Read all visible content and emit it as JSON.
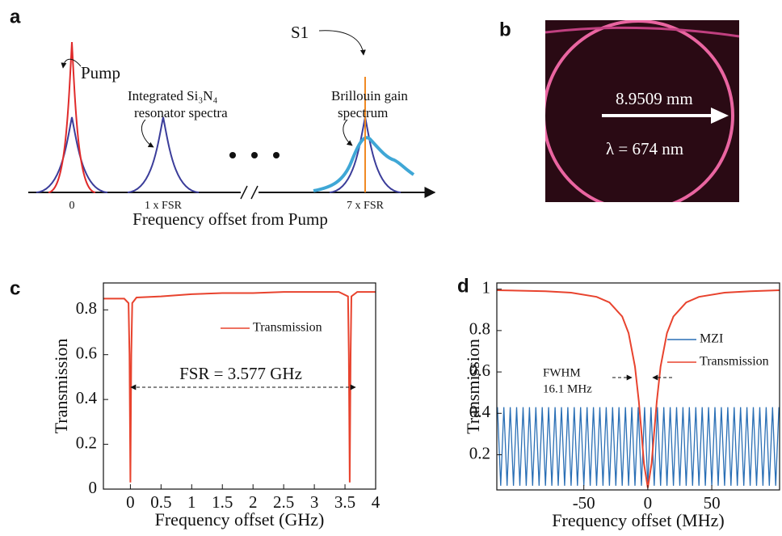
{
  "panel_a": {
    "label": "a",
    "pump": "Pump",
    "resonator": [
      "Integrated Si₃N₄",
      "resonator spectra"
    ],
    "brillouin": [
      "Brillouin gain",
      "spectrum"
    ],
    "s1": "S1",
    "ticks": [
      "0",
      "1 x FSR",
      "7 x FSR"
    ],
    "xlabel": "Frequency offset from Pump"
  },
  "panel_b": {
    "label": "b",
    "diameter": "8.9509 mm",
    "wavelength": "λ = 674 nm"
  },
  "chart_data": [
    {
      "type": "line",
      "panel": "c",
      "xlabel": "Frequency offset (GHz)",
      "ylabel": "Transmission",
      "annotations": [
        "FSR = 3.577 GHz"
      ],
      "xlim": [
        -0.44,
        4
      ],
      "ylim": [
        0,
        0.92
      ],
      "xticks": [
        0,
        0.5,
        1,
        1.5,
        2,
        2.5,
        3,
        3.5,
        4
      ],
      "yticks": [
        0,
        0.2,
        0.4,
        0.6,
        0.8
      ],
      "series": [
        {
          "name": "Transmission",
          "color": "#e8432e",
          "x": [
            -0.44,
            -0.3,
            -0.1,
            -0.03,
            -0.015,
            0,
            0.015,
            0.03,
            0.1,
            0.5,
            1,
            1.5,
            2,
            2.5,
            3,
            3.4,
            3.55,
            3.562,
            3.577,
            3.592,
            3.605,
            3.7,
            4
          ],
          "values": [
            0.85,
            0.85,
            0.85,
            0.83,
            0.6,
            0.03,
            0.6,
            0.83,
            0.855,
            0.86,
            0.87,
            0.875,
            0.875,
            0.88,
            0.88,
            0.88,
            0.86,
            0.6,
            0.03,
            0.6,
            0.86,
            0.88,
            0.88
          ]
        }
      ]
    },
    {
      "type": "line",
      "panel": "d",
      "xlabel": "Frequency offset (MHz)",
      "ylabel": "Transmission",
      "annotations": [
        "FWHM",
        "16.1 MHz"
      ],
      "xlim": [
        -118,
        103
      ],
      "ylim": [
        0.03,
        1.03
      ],
      "xticks": [
        -50,
        0,
        50
      ],
      "yticks": [
        0.2,
        0.4,
        0.6,
        0.8,
        1
      ],
      "series": [
        {
          "name": "MZI",
          "color": "#2a6fb5",
          "x": [
            -117.5,
            -115,
            -112.5,
            -110,
            -107.5,
            -105,
            -102.5,
            -100,
            -97.5,
            -95,
            -92.5,
            -90,
            -87.5,
            -85,
            -82.5,
            -80,
            -77.5,
            -75,
            -72.5,
            -70,
            -67.5,
            -65,
            -62.5,
            -60,
            -57.5,
            -55,
            -52.5,
            -50,
            -47.5,
            -45,
            -42.5,
            -40,
            -37.5,
            -35,
            -32.5,
            -30,
            -27.5,
            -25,
            -22.5,
            -20,
            -17.5,
            -15,
            -12.5,
            -10,
            -7.5,
            -5,
            -2.5,
            0,
            2.5,
            5,
            7.5,
            10,
            12.5,
            15,
            17.5,
            20,
            22.5,
            25,
            27.5,
            30,
            32.5,
            35,
            37.5,
            40,
            42.5,
            45,
            47.5,
            50,
            52.5,
            55,
            57.5,
            60,
            62.5,
            65,
            67.5,
            70,
            72.5,
            75,
            77.5,
            80,
            82.5,
            85,
            87.5,
            90,
            92.5,
            95,
            97.5,
            100,
            102.5
          ],
          "values": [
            0.43,
            0.05,
            0.43,
            0.05,
            0.43,
            0.05,
            0.43,
            0.05,
            0.43,
            0.05,
            0.43,
            0.05,
            0.43,
            0.05,
            0.43,
            0.05,
            0.43,
            0.05,
            0.43,
            0.05,
            0.43,
            0.05,
            0.43,
            0.05,
            0.43,
            0.05,
            0.43,
            0.05,
            0.43,
            0.05,
            0.43,
            0.05,
            0.43,
            0.05,
            0.43,
            0.05,
            0.43,
            0.05,
            0.43,
            0.05,
            0.43,
            0.05,
            0.43,
            0.05,
            0.43,
            0.05,
            0.43,
            0.05,
            0.43,
            0.05,
            0.43,
            0.05,
            0.43,
            0.05,
            0.43,
            0.05,
            0.43,
            0.05,
            0.43,
            0.05,
            0.43,
            0.05,
            0.43,
            0.05,
            0.43,
            0.05,
            0.43,
            0.05,
            0.43,
            0.05,
            0.43,
            0.05,
            0.43,
            0.05,
            0.43,
            0.05,
            0.43,
            0.05,
            0.43,
            0.05,
            0.43,
            0.05,
            0.43,
            0.05,
            0.43,
            0.05,
            0.43,
            0.05,
            0.43
          ]
        },
        {
          "name": "Transmission",
          "color": "#e8432e",
          "x": [
            -118,
            -80,
            -60,
            -40,
            -30,
            -20,
            -15,
            -10,
            -7,
            -5,
            -3,
            0,
            3,
            5,
            7,
            10,
            15,
            20,
            30,
            40,
            60,
            80,
            103
          ],
          "values": [
            0.995,
            0.99,
            0.983,
            0.963,
            0.936,
            0.868,
            0.788,
            0.626,
            0.457,
            0.31,
            0.158,
            0.04,
            0.158,
            0.31,
            0.457,
            0.626,
            0.788,
            0.868,
            0.936,
            0.963,
            0.983,
            0.99,
            0.995
          ]
        }
      ]
    }
  ]
}
